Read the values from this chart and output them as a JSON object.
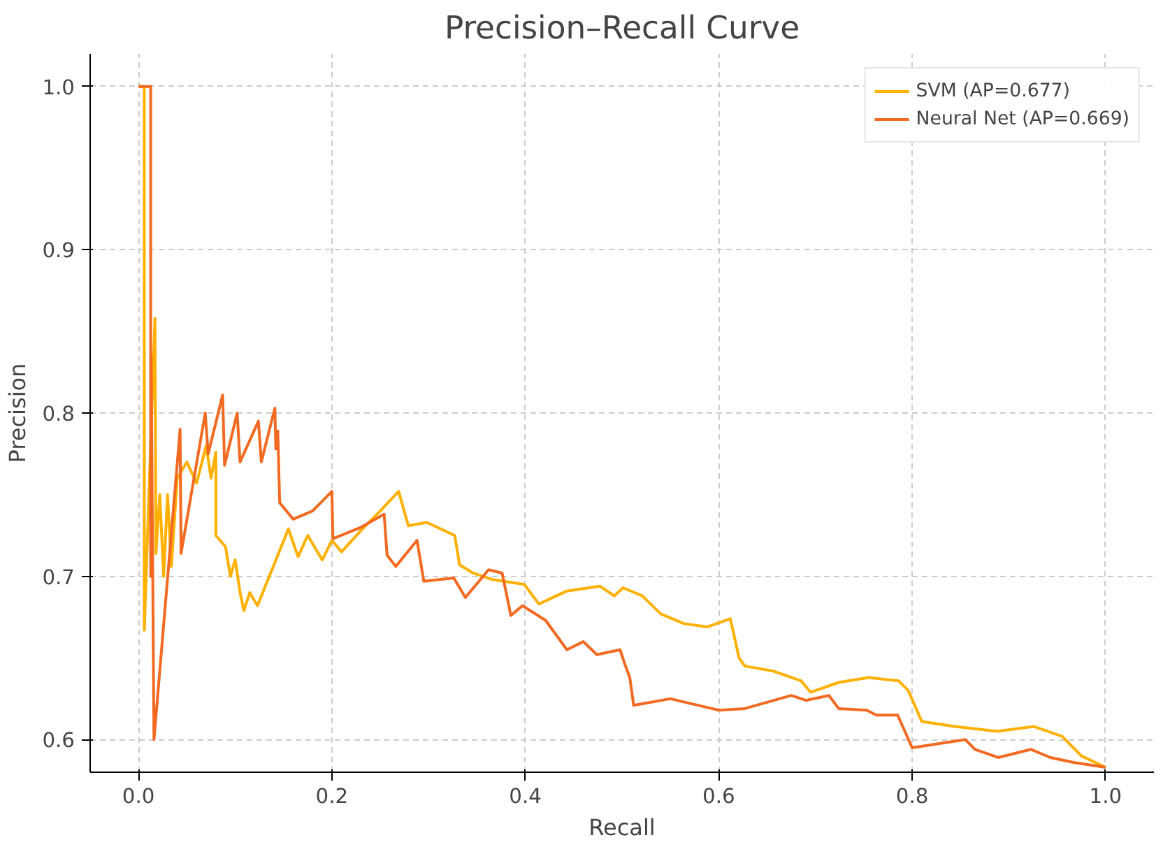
{
  "chart_data": {
    "type": "line",
    "title": "Precision–Recall Curve",
    "xlabel": "Recall",
    "ylabel": "Precision",
    "xlim": [
      -0.05,
      1.05
    ],
    "ylim": [
      0.58,
      1.02
    ],
    "xticks": [
      {
        "value": 0,
        "label": "0.0"
      },
      0.2,
      0.4,
      0.6,
      0.8,
      {
        "value": 1,
        "label": "1.0"
      }
    ],
    "yticks": [
      0.6,
      0.7,
      0.8,
      0.9,
      {
        "value": 1,
        "label": "1.0"
      }
    ],
    "grid": true,
    "legend": "top right",
    "line_style": "solid",
    "series": [
      {
        "name": "SVM (AP=0.677)",
        "color": "#ffb000",
        "x": [
          0,
          0.006,
          0.006,
          0.017,
          0.018,
          0.022,
          0.026,
          0.03,
          0.034,
          0.04,
          0.05,
          0.06,
          0.07,
          0.075,
          0.08,
          0.08,
          0.09,
          0.095,
          0.1,
          0.105,
          0.109,
          0.115,
          0.123,
          0.155,
          0.165,
          0.175,
          0.19,
          0.2,
          0.21,
          0.23,
          0.25,
          0.269,
          0.279,
          0.298,
          0.327,
          0.332,
          0.346,
          0.366,
          0.399,
          0.414,
          0.443,
          0.477,
          0.492,
          0.501,
          0.521,
          0.54,
          0.564,
          0.588,
          0.612,
          0.621,
          0.627,
          0.656,
          0.685,
          0.695,
          0.724,
          0.755,
          0.786,
          0.796,
          0.81,
          0.844,
          0.888,
          0.926,
          0.955,
          0.975,
          1.0
        ],
        "values": [
          1.0,
          1.0,
          0.667,
          0.858,
          0.714,
          0.75,
          0.7,
          0.75,
          0.706,
          0.76,
          0.77,
          0.757,
          0.78,
          0.76,
          0.776,
          0.725,
          0.718,
          0.7,
          0.71,
          0.69,
          0.679,
          0.69,
          0.682,
          0.729,
          0.712,
          0.725,
          0.71,
          0.722,
          0.715,
          0.728,
          0.74,
          0.752,
          0.731,
          0.733,
          0.725,
          0.707,
          0.702,
          0.698,
          0.695,
          0.683,
          0.691,
          0.694,
          0.688,
          0.693,
          0.688,
          0.677,
          0.671,
          0.669,
          0.674,
          0.65,
          0.645,
          0.642,
          0.636,
          0.629,
          0.635,
          0.638,
          0.636,
          0.63,
          0.611,
          0.608,
          0.605,
          0.608,
          0.602,
          0.59,
          0.583
        ]
      },
      {
        "name": "Neural Net (AP=0.669)",
        "color": "#f26a21",
        "x": [
          0,
          0.0126,
          0.0126,
          0.013,
          0.016,
          0.043,
          0.044,
          0.069,
          0.072,
          0.087,
          0.089,
          0.102,
          0.105,
          0.124,
          0.127,
          0.141,
          0.142,
          0.144,
          0.146,
          0.16,
          0.18,
          0.2,
          0.201,
          0.23,
          0.254,
          0.257,
          0.266,
          0.288,
          0.295,
          0.326,
          0.338,
          0.362,
          0.376,
          0.385,
          0.397,
          0.421,
          0.443,
          0.46,
          0.474,
          0.498,
          0.503,
          0.508,
          0.512,
          0.55,
          0.6,
          0.627,
          0.675,
          0.69,
          0.714,
          0.724,
          0.753,
          0.763,
          0.785,
          0.8,
          0.855,
          0.865,
          0.889,
          0.923,
          0.943,
          0.967,
          1.0
        ],
        "values": [
          1.0,
          1.0,
          0.7,
          0.835,
          0.6,
          0.79,
          0.714,
          0.8,
          0.775,
          0.811,
          0.768,
          0.8,
          0.77,
          0.795,
          0.77,
          0.803,
          0.778,
          0.789,
          0.745,
          0.735,
          0.74,
          0.752,
          0.723,
          0.73,
          0.738,
          0.713,
          0.706,
          0.722,
          0.697,
          0.699,
          0.687,
          0.704,
          0.702,
          0.676,
          0.682,
          0.673,
          0.655,
          0.66,
          0.652,
          0.655,
          0.646,
          0.638,
          0.621,
          0.625,
          0.618,
          0.619,
          0.627,
          0.624,
          0.627,
          0.619,
          0.618,
          0.615,
          0.615,
          0.595,
          0.6,
          0.594,
          0.589,
          0.594,
          0.589,
          0.586,
          0.583
        ]
      }
    ]
  }
}
